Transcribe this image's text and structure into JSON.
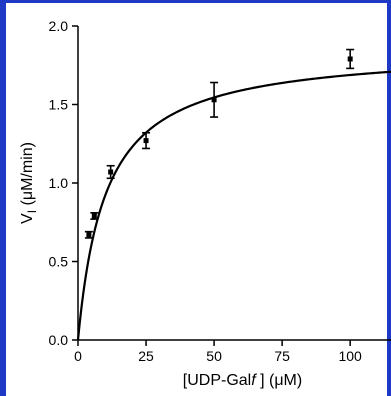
{
  "chart_data": {
    "type": "scatter",
    "title": "",
    "xlabel": "[UDP-Galf ] (μM)",
    "ylabel": "V_I (μM/min)",
    "xlabel_parts": {
      "before": "[UDP-Gal",
      "italic": "f",
      "after": " ] (μM)"
    },
    "ylabel_parts": {
      "main": "V",
      "sub": "I",
      "after": " (μM/min)"
    },
    "xlim": [
      0,
      115
    ],
    "ylim": [
      0,
      2.0
    ],
    "xticks": [
      0,
      25,
      50,
      75,
      100
    ],
    "yticks": [
      0.0,
      0.5,
      1.0,
      1.5,
      2.0
    ],
    "ytick_labels": [
      "0.0",
      "0.5",
      "1.0",
      "1.5",
      "2.0"
    ],
    "grid": false,
    "series": [
      {
        "points": [
          {
            "x": 4,
            "y": 0.67,
            "err": 0.02
          },
          {
            "x": 6,
            "y": 0.79,
            "err": 0.02
          },
          {
            "x": 12,
            "y": 1.07,
            "err": 0.04
          },
          {
            "x": 25,
            "y": 1.27,
            "err": 0.05
          },
          {
            "x": 50,
            "y": 1.53,
            "err": 0.11
          },
          {
            "x": 100,
            "y": 1.79,
            "err": 0.06
          }
        ]
      }
    ],
    "fit": {
      "model": "michaelis-menten",
      "vmax": 1.86,
      "km": 10.2
    }
  }
}
